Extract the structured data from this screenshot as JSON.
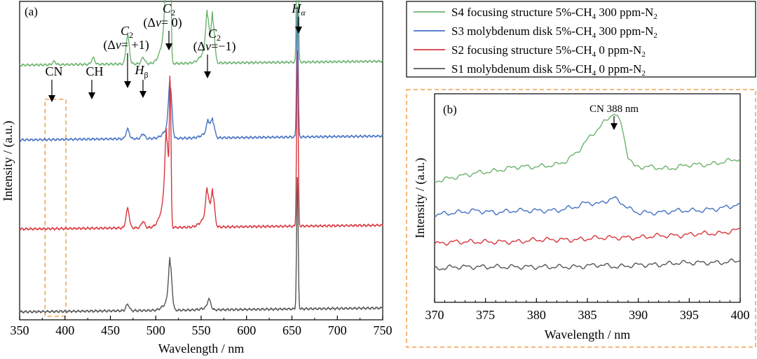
{
  "chart_data": [
    {
      "type": "line",
      "panel_label": "(a)",
      "xlabel": "Wavelength / nm",
      "ylabel": "Intensity / (a.u.)",
      "xlim": [
        350,
        750
      ],
      "xticks": [
        350,
        400,
        450,
        500,
        550,
        600,
        650,
        700,
        750
      ],
      "y_ticks_labeled": false,
      "grid": false,
      "stacked_offsets": true,
      "series": [
        {
          "name": "S4 focusing structure 5%-CH4 300 ppm-N2",
          "color": "#6cb36e",
          "baseline": 0.8,
          "peaks": [
            [
              388,
              0.01
            ],
            [
              431,
              0.02
            ],
            [
              469,
              0.09
            ],
            [
              486,
              0.02
            ],
            [
              512,
              0.18
            ],
            [
              516,
              0.46
            ],
            [
              557,
              0.12
            ],
            [
              563,
              0.13
            ],
            [
              656,
              0.67
            ]
          ]
        },
        {
          "name": "S3 molybdenum disk 5%-CH4 300 ppm-N2",
          "color": "#4472c4",
          "baseline": 0.565,
          "peaks": [
            [
              469,
              0.03
            ],
            [
              486,
              0.015
            ],
            [
              516,
              0.16
            ],
            [
              558,
              0.04
            ],
            [
              563,
              0.05
            ],
            [
              656,
              0.41
            ]
          ]
        },
        {
          "name": "S2 focusing structure 5%-CH4 0 ppm-N2",
          "color": "#d9363e",
          "baseline": 0.285,
          "peaks": [
            [
              469,
              0.06
            ],
            [
              486,
              0.02
            ],
            [
              512,
              0.2
            ],
            [
              516,
              0.42
            ],
            [
              557,
              0.09
            ],
            [
              563,
              0.1
            ],
            [
              656,
              0.55
            ]
          ]
        },
        {
          "name": "S1 molybdenum disk 5%-CH4 0 ppm-N2",
          "color": "#555555",
          "baseline": 0.025,
          "peaks": [
            [
              469,
              0.02
            ],
            [
              516,
              0.14
            ],
            [
              559,
              0.03
            ],
            [
              656,
              0.41
            ]
          ]
        }
      ],
      "annotations": [
        {
          "text": "CN",
          "x": 388
        },
        {
          "text": "CH",
          "x": 431
        },
        {
          "text": "C2 (Δν=+1)",
          "x": 471
        },
        {
          "text": "Hβ",
          "x": 486
        },
        {
          "text": "C2 (Δν=0)",
          "x": 516
        },
        {
          "text": "C2 (Δν=−1)",
          "x": 563
        },
        {
          "text": "Hα",
          "x": 656
        }
      ],
      "highlight_region": {
        "x": [
          378,
          401
        ],
        "style": "dashed",
        "color": "#f0a050"
      }
    },
    {
      "type": "line",
      "panel_label": "(b)",
      "xlabel": "Wavelength / nm",
      "ylabel": "Intensity / (a.u.)",
      "xlim": [
        370,
        400
      ],
      "xticks": [
        370,
        375,
        380,
        385,
        390,
        395,
        400
      ],
      "y_ticks_labeled": false,
      "grid": false,
      "annotation": {
        "text": "CN 388 nm",
        "x": 387.6
      },
      "series": [
        {
          "name": "S4 focusing structure 5%-CH4 300 ppm-N2",
          "color": "#6cb36e",
          "points": [
            [
              370,
              0.58
            ],
            [
              372,
              0.6
            ],
            [
              374,
              0.62
            ],
            [
              376,
              0.63
            ],
            [
              378,
              0.65
            ],
            [
              380,
              0.65
            ],
            [
              382,
              0.66
            ],
            [
              383,
              0.68
            ],
            [
              384,
              0.72
            ],
            [
              385,
              0.78
            ],
            [
              386,
              0.83
            ],
            [
              387,
              0.88
            ],
            [
              387.6,
              0.91
            ],
            [
              388.3,
              0.86
            ],
            [
              389,
              0.7
            ],
            [
              389.6,
              0.65
            ],
            [
              391,
              0.65
            ],
            [
              393,
              0.64
            ],
            [
              395,
              0.66
            ],
            [
              397,
              0.66
            ],
            [
              398,
              0.67
            ],
            [
              400,
              0.69
            ]
          ]
        },
        {
          "name": "S3 molybdenum disk 5%-CH4 300 ppm-N2",
          "color": "#4472c4",
          "points": [
            [
              370,
              0.42
            ],
            [
              372,
              0.43
            ],
            [
              374,
              0.44
            ],
            [
              376,
              0.43
            ],
            [
              378,
              0.44
            ],
            [
              380,
              0.44
            ],
            [
              382,
              0.44
            ],
            [
              383,
              0.45
            ],
            [
              384,
              0.46
            ],
            [
              385,
              0.48
            ],
            [
              386,
              0.47
            ],
            [
              387,
              0.49
            ],
            [
              387.6,
              0.5
            ],
            [
              388.3,
              0.48
            ],
            [
              389,
              0.45
            ],
            [
              390,
              0.43
            ],
            [
              392,
              0.43
            ],
            [
              394,
              0.44
            ],
            [
              396,
              0.44
            ],
            [
              398,
              0.45
            ],
            [
              400,
              0.47
            ]
          ]
        },
        {
          "name": "S2 focusing structure 5%-CH4 0 ppm-N2",
          "color": "#d9363e",
          "points": [
            [
              370,
              0.28
            ],
            [
              372,
              0.29
            ],
            [
              374,
              0.29
            ],
            [
              376,
              0.29
            ],
            [
              378,
              0.29
            ],
            [
              380,
              0.3
            ],
            [
              382,
              0.3
            ],
            [
              384,
              0.3
            ],
            [
              386,
              0.31
            ],
            [
              388,
              0.31
            ],
            [
              390,
              0.31
            ],
            [
              392,
              0.32
            ],
            [
              394,
              0.32
            ],
            [
              396,
              0.33
            ],
            [
              398,
              0.33
            ],
            [
              400,
              0.35
            ]
          ]
        },
        {
          "name": "S1 molybdenum disk 5%-CH4 0 ppm-N2",
          "color": "#555555",
          "points": [
            [
              370,
              0.16
            ],
            [
              372,
              0.17
            ],
            [
              374,
              0.17
            ],
            [
              376,
              0.17
            ],
            [
              378,
              0.17
            ],
            [
              380,
              0.17
            ],
            [
              382,
              0.17
            ],
            [
              384,
              0.17
            ],
            [
              386,
              0.18
            ],
            [
              388,
              0.17
            ],
            [
              390,
              0.18
            ],
            [
              392,
              0.18
            ],
            [
              394,
              0.19
            ],
            [
              396,
              0.19
            ],
            [
              398,
              0.19
            ],
            [
              400,
              0.2
            ]
          ]
        }
      ]
    }
  ]
}
